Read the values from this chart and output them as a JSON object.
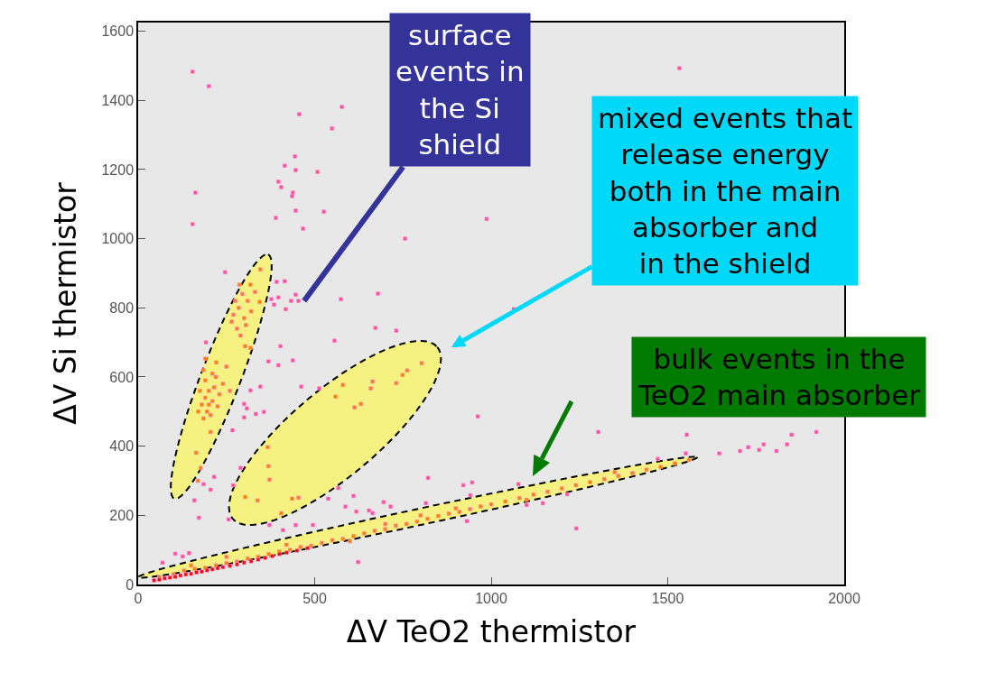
{
  "chart_data": {
    "type": "scatter",
    "xlabel": "ΔV TeO2 thermistor",
    "ylabel": "ΔV Si thermistor",
    "xlim": [
      0,
      2000
    ],
    "ylim": [
      0,
      1625
    ],
    "xticks": [
      0,
      500,
      1000,
      1500,
      2000
    ],
    "yticks": [
      0,
      200,
      400,
      600,
      800,
      1000,
      1200,
      1400,
      1600
    ],
    "grid": false,
    "marker": "square",
    "annotations": [
      {
        "text": "surface\nevents in\nthe Si\nshield",
        "x": 470,
        "y": 820
      },
      "mixed events that\nrelease energy\nboth in the main\nabsorber and\nin the shield",
      "bulk events in the\nTeO2 main absorber"
    ],
    "series": [
      {
        "color": "#ff4f9f",
        "x": [
          154,
          200,
          456,
          577,
          549,
          444,
          415,
          446,
          508,
          397,
          405,
          438,
          436,
          162,
          446,
          526,
          390,
          154,
          467,
          756,
          987,
          246,
          392,
          415,
          377,
          397,
          446,
          433,
          454,
          574,
          679,
          385,
          418,
          1533,
          1064,
          672,
          731,
          556,
          403,
          369,
          397,
          438,
          192,
          318,
          346,
          300,
          308,
          333,
          356,
          300,
          267,
          462,
          513,
          962,
          290,
          215,
          205,
          185,
          159,
          172,
          256,
          269,
          372,
          446,
          495,
          567,
          610,
          538,
          587,
          618,
          654,
          664,
          695,
          715,
          821,
          921,
          946,
          941,
          815,
          931,
          623,
          105,
          144,
          126,
          69,
          410,
          1303,
          1554,
          1551,
          1646,
          1705,
          1728,
          1759,
          1772,
          1808,
          1838,
          1851,
          1921,
          1241,
          1472,
          1077,
          1146,
          1100,
          1215
        ],
        "values": [
          1483,
          1441,
          1360,
          1381,
          1319,
          1238,
          1211,
          1198,
          1193,
          1165,
          1149,
          1133,
          1123,
          1133,
          1081,
          1078,
          1060,
          1042,
          1029,
          1000,
          1057,
          903,
          875,
          877,
          825,
          830,
          838,
          820,
          820,
          825,
          841,
          809,
          796,
          1493,
          796,
          742,
          734,
          705,
          689,
          645,
          634,
          648,
          700,
          561,
          572,
          522,
          509,
          493,
          499,
          483,
          446,
          572,
          567,
          486,
          337,
          311,
          274,
          290,
          243,
          193,
          188,
          287,
          172,
          172,
          172,
          279,
          256,
          248,
          225,
          211,
          214,
          206,
          238,
          225,
          308,
          287,
          295,
          258,
          235,
          183,
          65,
          89,
          91,
          81,
          63,
          157,
          441,
          433,
          379,
          379,
          386,
          397,
          389,
          405,
          386,
          405,
          433,
          441,
          162,
          363,
          290,
          235,
          230,
          261
        ]
      },
      {
        "color": "#ff7f00",
        "x": [
          180,
          190,
          200,
          210,
          195,
          185,
          205,
          215,
          220,
          175,
          200,
          230,
          210,
          190,
          225,
          240,
          170,
          185,
          250,
          260,
          270,
          285,
          300,
          280,
          310,
          295,
          265,
          320,
          290,
          275,
          305,
          346,
          287,
          318,
          331,
          344,
          164,
          177,
          169,
          221,
          190,
          303,
          318,
          205,
          803,
          762,
          749,
          731,
          664,
          659,
          580,
          559,
          631,
          613,
          367,
          369,
          372,
          338,
          303,
          436,
          454,
          405,
          60,
          100,
          130,
          160,
          190,
          220,
          250,
          280,
          310,
          340,
          370,
          400,
          430,
          460,
          490,
          520,
          550,
          580,
          610,
          640,
          670,
          700,
          730,
          760,
          790,
          820,
          850,
          880,
          910,
          940,
          970,
          1000,
          1040,
          1080,
          1120,
          1160,
          1200,
          1240,
          1280,
          1320,
          1360,
          1400,
          1440,
          1480,
          1520,
          1560,
          250,
          420,
          600,
          800,
          1100,
          1350,
          700,
          900,
          150
        ],
        "values": [
          520,
          540,
          560,
          530,
          500,
          480,
          490,
          570,
          600,
          560,
          520,
          550,
          610,
          590,
          515,
          580,
          500,
          620,
          630,
          560,
          780,
          800,
          770,
          740,
          820,
          840,
          760,
          790,
          720,
          820,
          750,
          911,
          867,
          867,
          846,
          817,
          381,
          337,
          300,
          642,
          653,
          689,
          684,
          441,
          640,
          619,
          606,
          582,
          587,
          567,
          577,
          543,
          522,
          512,
          397,
          342,
          303,
          243,
          253,
          248,
          251,
          206,
          22,
          30,
          40,
          45,
          48,
          55,
          62,
          66,
          75,
          80,
          88,
          95,
          100,
          108,
          112,
          120,
          128,
          132,
          140,
          148,
          155,
          160,
          170,
          175,
          182,
          190,
          198,
          205,
          210,
          218,
          226,
          232,
          240,
          250,
          260,
          268,
          278,
          287,
          296,
          305,
          314,
          322,
          332,
          340,
          350,
          360,
          80,
          115,
          125,
          200,
          245,
          325,
          175,
          220,
          55
        ]
      },
      {
        "color": "#ff0000",
        "x": [
          45,
          60,
          75,
          90,
          105,
          120,
          135,
          150,
          165,
          180,
          195,
          210,
          225,
          240,
          260,
          280,
          300,
          320,
          340,
          360,
          380,
          400,
          420,
          450,
          480
        ],
        "values": [
          12,
          14,
          18,
          20,
          22,
          26,
          29,
          31,
          35,
          37,
          41,
          44,
          47,
          50,
          54,
          58,
          63,
          67,
          72,
          77,
          82,
          88,
          92,
          98,
          105
        ]
      }
    ]
  }
}
